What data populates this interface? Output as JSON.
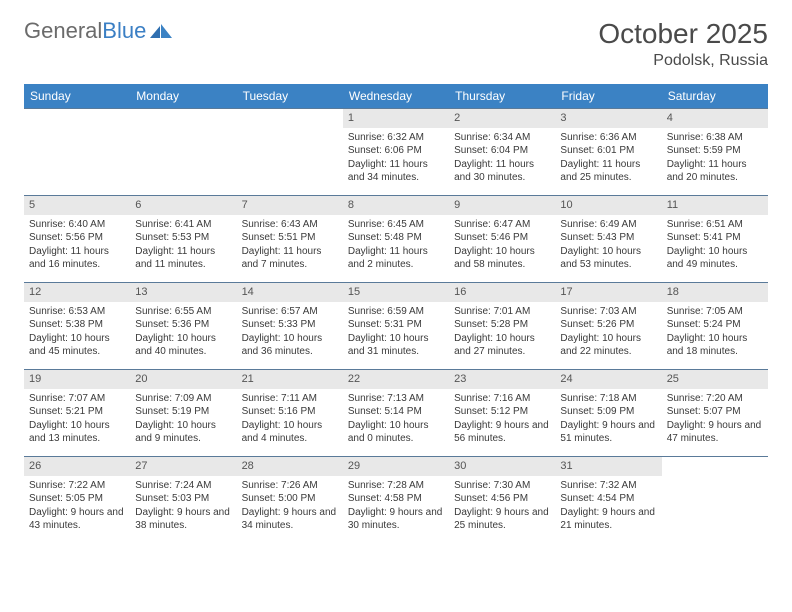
{
  "logo": {
    "word1": "General",
    "word2": "Blue"
  },
  "title": "October 2025",
  "location": "Podolsk, Russia",
  "colors": {
    "header_bg": "#3b82c4",
    "header_text": "#ffffff",
    "row_border": "#5a7a99",
    "daynum_bg": "#e8e8e8",
    "page_bg": "#ffffff",
    "logo_gray": "#6b6b6b",
    "logo_blue": "#3b7fc4"
  },
  "typography": {
    "title_fontsize": 28,
    "location_fontsize": 16,
    "header_fontsize": 12,
    "cell_fontsize": 10
  },
  "weekdays": [
    "Sunday",
    "Monday",
    "Tuesday",
    "Wednesday",
    "Thursday",
    "Friday",
    "Saturday"
  ],
  "weeks": [
    [
      {
        "day": "",
        "sunrise": "",
        "sunset": "",
        "daylight": ""
      },
      {
        "day": "",
        "sunrise": "",
        "sunset": "",
        "daylight": ""
      },
      {
        "day": "",
        "sunrise": "",
        "sunset": "",
        "daylight": ""
      },
      {
        "day": "1",
        "sunrise": "Sunrise: 6:32 AM",
        "sunset": "Sunset: 6:06 PM",
        "daylight": "Daylight: 11 hours and 34 minutes."
      },
      {
        "day": "2",
        "sunrise": "Sunrise: 6:34 AM",
        "sunset": "Sunset: 6:04 PM",
        "daylight": "Daylight: 11 hours and 30 minutes."
      },
      {
        "day": "3",
        "sunrise": "Sunrise: 6:36 AM",
        "sunset": "Sunset: 6:01 PM",
        "daylight": "Daylight: 11 hours and 25 minutes."
      },
      {
        "day": "4",
        "sunrise": "Sunrise: 6:38 AM",
        "sunset": "Sunset: 5:59 PM",
        "daylight": "Daylight: 11 hours and 20 minutes."
      }
    ],
    [
      {
        "day": "5",
        "sunrise": "Sunrise: 6:40 AM",
        "sunset": "Sunset: 5:56 PM",
        "daylight": "Daylight: 11 hours and 16 minutes."
      },
      {
        "day": "6",
        "sunrise": "Sunrise: 6:41 AM",
        "sunset": "Sunset: 5:53 PM",
        "daylight": "Daylight: 11 hours and 11 minutes."
      },
      {
        "day": "7",
        "sunrise": "Sunrise: 6:43 AM",
        "sunset": "Sunset: 5:51 PM",
        "daylight": "Daylight: 11 hours and 7 minutes."
      },
      {
        "day": "8",
        "sunrise": "Sunrise: 6:45 AM",
        "sunset": "Sunset: 5:48 PM",
        "daylight": "Daylight: 11 hours and 2 minutes."
      },
      {
        "day": "9",
        "sunrise": "Sunrise: 6:47 AM",
        "sunset": "Sunset: 5:46 PM",
        "daylight": "Daylight: 10 hours and 58 minutes."
      },
      {
        "day": "10",
        "sunrise": "Sunrise: 6:49 AM",
        "sunset": "Sunset: 5:43 PM",
        "daylight": "Daylight: 10 hours and 53 minutes."
      },
      {
        "day": "11",
        "sunrise": "Sunrise: 6:51 AM",
        "sunset": "Sunset: 5:41 PM",
        "daylight": "Daylight: 10 hours and 49 minutes."
      }
    ],
    [
      {
        "day": "12",
        "sunrise": "Sunrise: 6:53 AM",
        "sunset": "Sunset: 5:38 PM",
        "daylight": "Daylight: 10 hours and 45 minutes."
      },
      {
        "day": "13",
        "sunrise": "Sunrise: 6:55 AM",
        "sunset": "Sunset: 5:36 PM",
        "daylight": "Daylight: 10 hours and 40 minutes."
      },
      {
        "day": "14",
        "sunrise": "Sunrise: 6:57 AM",
        "sunset": "Sunset: 5:33 PM",
        "daylight": "Daylight: 10 hours and 36 minutes."
      },
      {
        "day": "15",
        "sunrise": "Sunrise: 6:59 AM",
        "sunset": "Sunset: 5:31 PM",
        "daylight": "Daylight: 10 hours and 31 minutes."
      },
      {
        "day": "16",
        "sunrise": "Sunrise: 7:01 AM",
        "sunset": "Sunset: 5:28 PM",
        "daylight": "Daylight: 10 hours and 27 minutes."
      },
      {
        "day": "17",
        "sunrise": "Sunrise: 7:03 AM",
        "sunset": "Sunset: 5:26 PM",
        "daylight": "Daylight: 10 hours and 22 minutes."
      },
      {
        "day": "18",
        "sunrise": "Sunrise: 7:05 AM",
        "sunset": "Sunset: 5:24 PM",
        "daylight": "Daylight: 10 hours and 18 minutes."
      }
    ],
    [
      {
        "day": "19",
        "sunrise": "Sunrise: 7:07 AM",
        "sunset": "Sunset: 5:21 PM",
        "daylight": "Daylight: 10 hours and 13 minutes."
      },
      {
        "day": "20",
        "sunrise": "Sunrise: 7:09 AM",
        "sunset": "Sunset: 5:19 PM",
        "daylight": "Daylight: 10 hours and 9 minutes."
      },
      {
        "day": "21",
        "sunrise": "Sunrise: 7:11 AM",
        "sunset": "Sunset: 5:16 PM",
        "daylight": "Daylight: 10 hours and 4 minutes."
      },
      {
        "day": "22",
        "sunrise": "Sunrise: 7:13 AM",
        "sunset": "Sunset: 5:14 PM",
        "daylight": "Daylight: 10 hours and 0 minutes."
      },
      {
        "day": "23",
        "sunrise": "Sunrise: 7:16 AM",
        "sunset": "Sunset: 5:12 PM",
        "daylight": "Daylight: 9 hours and 56 minutes."
      },
      {
        "day": "24",
        "sunrise": "Sunrise: 7:18 AM",
        "sunset": "Sunset: 5:09 PM",
        "daylight": "Daylight: 9 hours and 51 minutes."
      },
      {
        "day": "25",
        "sunrise": "Sunrise: 7:20 AM",
        "sunset": "Sunset: 5:07 PM",
        "daylight": "Daylight: 9 hours and 47 minutes."
      }
    ],
    [
      {
        "day": "26",
        "sunrise": "Sunrise: 7:22 AM",
        "sunset": "Sunset: 5:05 PM",
        "daylight": "Daylight: 9 hours and 43 minutes."
      },
      {
        "day": "27",
        "sunrise": "Sunrise: 7:24 AM",
        "sunset": "Sunset: 5:03 PM",
        "daylight": "Daylight: 9 hours and 38 minutes."
      },
      {
        "day": "28",
        "sunrise": "Sunrise: 7:26 AM",
        "sunset": "Sunset: 5:00 PM",
        "daylight": "Daylight: 9 hours and 34 minutes."
      },
      {
        "day": "29",
        "sunrise": "Sunrise: 7:28 AM",
        "sunset": "Sunset: 4:58 PM",
        "daylight": "Daylight: 9 hours and 30 minutes."
      },
      {
        "day": "30",
        "sunrise": "Sunrise: 7:30 AM",
        "sunset": "Sunset: 4:56 PM",
        "daylight": "Daylight: 9 hours and 25 minutes."
      },
      {
        "day": "31",
        "sunrise": "Sunrise: 7:32 AM",
        "sunset": "Sunset: 4:54 PM",
        "daylight": "Daylight: 9 hours and 21 minutes."
      },
      {
        "day": "",
        "sunrise": "",
        "sunset": "",
        "daylight": ""
      }
    ]
  ]
}
